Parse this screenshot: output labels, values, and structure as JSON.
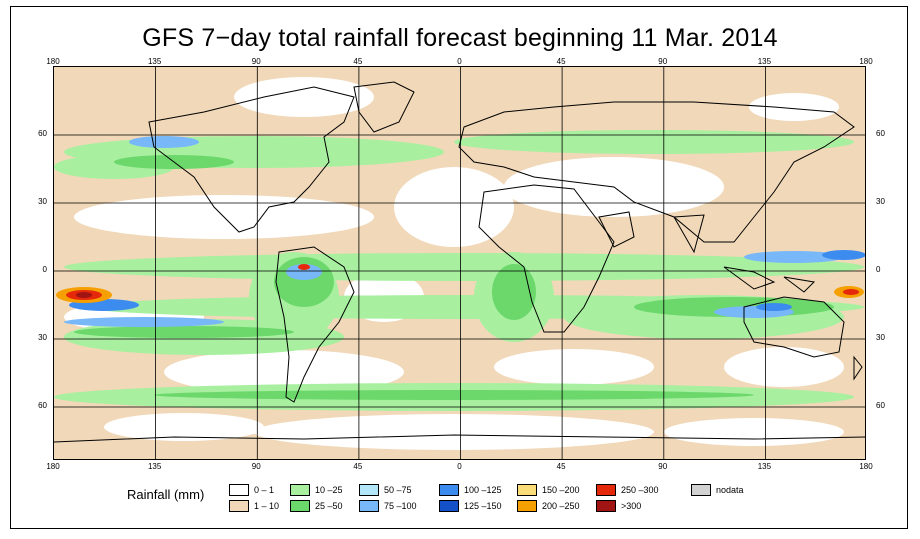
{
  "title": "GFS 7−day total rainfall forecast beginning 11 Mar. 2014",
  "axes": {
    "top_lon_labels": [
      "180",
      "135",
      "90",
      "45",
      "0",
      "45",
      "90",
      "135",
      "180"
    ],
    "bottom_lon_labels": [
      "180",
      "135",
      "90",
      "45",
      "0",
      "45",
      "90",
      "135",
      "180"
    ],
    "left_lat_labels": [
      "60",
      "30",
      "0",
      "30",
      "60"
    ],
    "right_lat_labels": [
      "60",
      "30",
      "0",
      "30",
      "60"
    ]
  },
  "legend": {
    "title": "Rainfall (mm)",
    "items": [
      {
        "label": "0 – 1",
        "color": "#ffffff"
      },
      {
        "label": "1 – 10",
        "color": "#f0d8b8"
      },
      {
        "label": "10 –25",
        "color": "#a8f0a0"
      },
      {
        "label": "25 –50",
        "color": "#6cd86c"
      },
      {
        "label": "50 –75",
        "color": "#b4e6fa"
      },
      {
        "label": "75 –100",
        "color": "#78b8f8"
      },
      {
        "label": "100 –125",
        "color": "#3c8cf0"
      },
      {
        "label": "125 –150",
        "color": "#1450c8"
      },
      {
        "label": "150 –200",
        "color": "#fadc78"
      },
      {
        "label": "200 –250",
        "color": "#f5a000"
      },
      {
        "label": "250 –300",
        "color": "#e6280a"
      },
      {
        "label": ">300",
        "color": "#a01414"
      },
      {
        "label": "nodata",
        "color": "#d2d2d2"
      }
    ]
  }
}
